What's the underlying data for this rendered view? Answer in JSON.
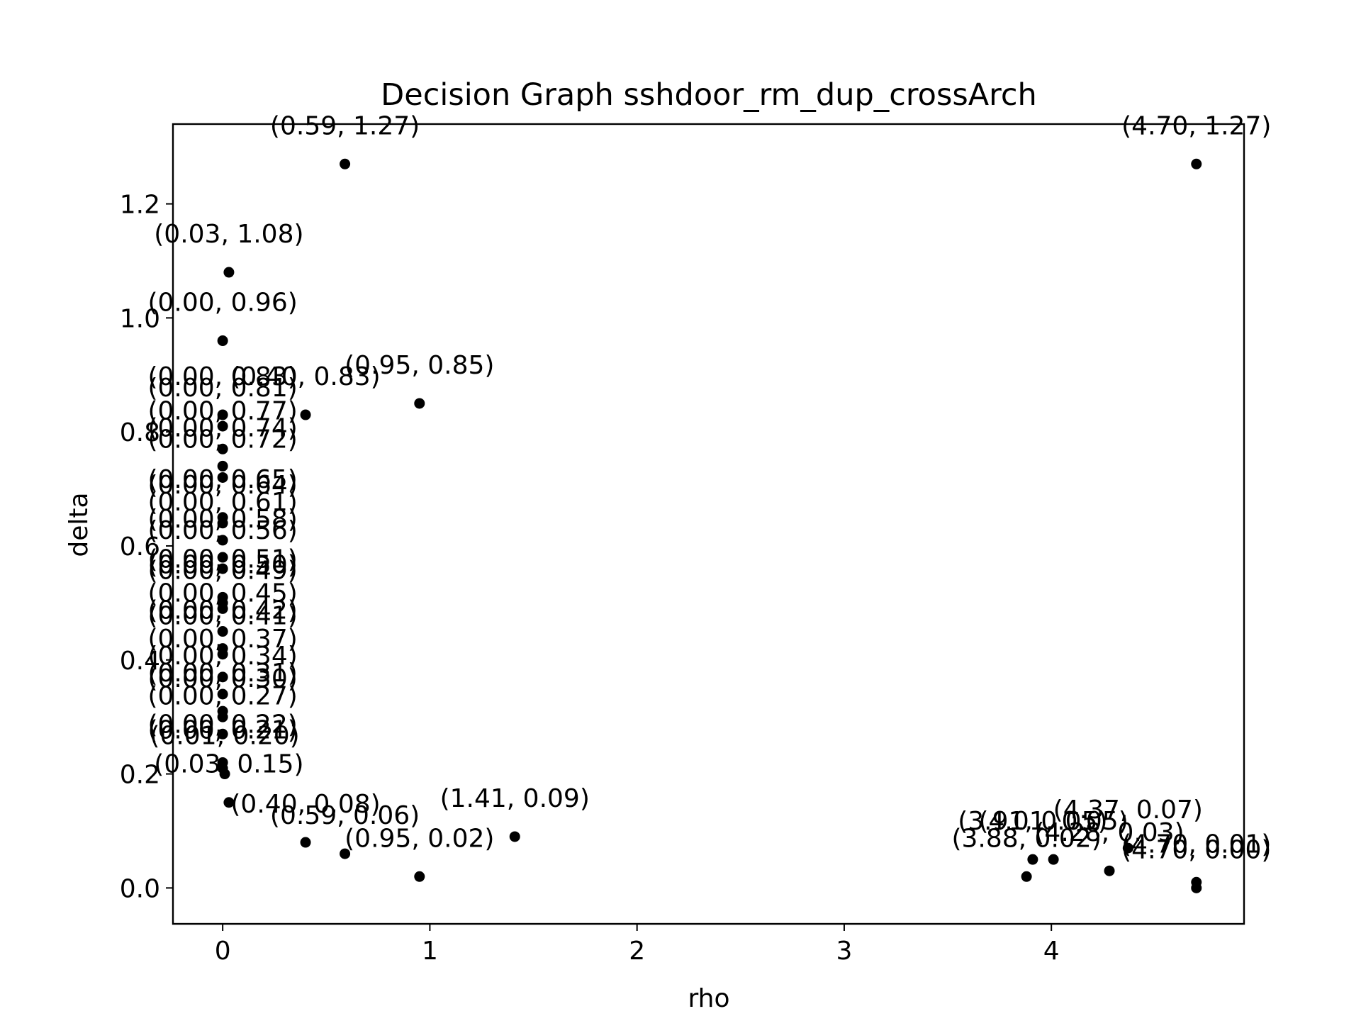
{
  "chart_data": {
    "type": "scatter",
    "title": "Decision Graph sshdoor_rm_dup_crossArch",
    "xlabel": "rho",
    "ylabel": "delta",
    "xlim": [
      -0.24,
      4.93
    ],
    "ylim": [
      -0.063,
      1.34
    ],
    "xticks": [
      0,
      1,
      2,
      3,
      4
    ],
    "yticks": [
      0.0,
      0.2,
      0.4,
      0.6,
      0.8,
      1.0,
      1.2
    ],
    "xtick_labels": [
      "0",
      "1",
      "2",
      "3",
      "4"
    ],
    "ytick_labels": [
      "0.0",
      "0.2",
      "0.4",
      "0.6",
      "0.8",
      "1.0",
      "1.2"
    ],
    "grid": false,
    "marker_color": "#000000",
    "points": [
      {
        "x": 0.59,
        "y": 1.27,
        "label": "(0.59, 1.27)"
      },
      {
        "x": 4.7,
        "y": 1.27,
        "label": "(4.70, 1.27)"
      },
      {
        "x": 0.03,
        "y": 1.08,
        "label": "(0.03, 1.08)"
      },
      {
        "x": 0.0,
        "y": 0.96,
        "label": "(0.00, 0.96)"
      },
      {
        "x": 0.95,
        "y": 0.85,
        "label": "(0.95, 0.85)"
      },
      {
        "x": 0.4,
        "y": 0.83,
        "label": "(0.40, 0.83)"
      },
      {
        "x": 0.0,
        "y": 0.83,
        "label": "(0.00, 0.83)"
      },
      {
        "x": 0.0,
        "y": 0.81,
        "label": "(0.00, 0.81)"
      },
      {
        "x": 0.0,
        "y": 0.77,
        "label": "(0.00, 0.77)"
      },
      {
        "x": 0.0,
        "y": 0.74,
        "label": "(0.00, 0.74)"
      },
      {
        "x": 0.0,
        "y": 0.72,
        "label": "(0.00, 0.72)"
      },
      {
        "x": 0.0,
        "y": 0.65,
        "label": "(0.00, 0.65)"
      },
      {
        "x": 0.0,
        "y": 0.64,
        "label": "(0.00, 0.64)"
      },
      {
        "x": 0.0,
        "y": 0.61,
        "label": "(0.00, 0.61)"
      },
      {
        "x": 0.0,
        "y": 0.58,
        "label": "(0.00, 0.58)"
      },
      {
        "x": 0.0,
        "y": 0.56,
        "label": "(0.00, 0.56)"
      },
      {
        "x": 0.0,
        "y": 0.51,
        "label": "(0.00, 0.51)"
      },
      {
        "x": 0.0,
        "y": 0.5,
        "label": "(0.00, 0.50)"
      },
      {
        "x": 0.0,
        "y": 0.49,
        "label": "(0.00, 0.49)"
      },
      {
        "x": 0.0,
        "y": 0.45,
        "label": "(0.00, 0.45)"
      },
      {
        "x": 0.0,
        "y": 0.42,
        "label": "(0.00, 0.42)"
      },
      {
        "x": 0.0,
        "y": 0.41,
        "label": "(0.00, 0.41)"
      },
      {
        "x": 0.0,
        "y": 0.37,
        "label": "(0.00, 0.37)"
      },
      {
        "x": 0.0,
        "y": 0.34,
        "label": "(0.00, 0.34)"
      },
      {
        "x": 0.0,
        "y": 0.31,
        "label": "(0.00, 0.31)"
      },
      {
        "x": 0.0,
        "y": 0.3,
        "label": "(0.00, 0.30)"
      },
      {
        "x": 0.0,
        "y": 0.27,
        "label": "(0.00, 0.27)"
      },
      {
        "x": 0.0,
        "y": 0.22,
        "label": "(0.00, 0.22)"
      },
      {
        "x": 0.0,
        "y": 0.21,
        "label": "(0.00, 0.21)"
      },
      {
        "x": 0.01,
        "y": 0.2,
        "label": "(0.01, 0.20)"
      },
      {
        "x": 0.03,
        "y": 0.15,
        "label": "(0.03, 0.15)"
      },
      {
        "x": 0.4,
        "y": 0.08,
        "label": "(0.40, 0.08)"
      },
      {
        "x": 0.59,
        "y": 0.06,
        "label": "(0.59, 0.06)"
      },
      {
        "x": 1.41,
        "y": 0.09,
        "label": "(1.41, 0.09)"
      },
      {
        "x": 0.95,
        "y": 0.02,
        "label": "(0.95, 0.02)"
      },
      {
        "x": 3.91,
        "y": 0.05,
        "label": "(3.91, 0.05)"
      },
      {
        "x": 4.01,
        "y": 0.05,
        "label": "(4.01, 0.05)"
      },
      {
        "x": 3.88,
        "y": 0.02,
        "label": "(3.88, 0.02)"
      },
      {
        "x": 4.28,
        "y": 0.03,
        "label": "(4.28, 0.03)"
      },
      {
        "x": 4.37,
        "y": 0.07,
        "label": "(4.37, 0.07)"
      },
      {
        "x": 4.7,
        "y": 0.01,
        "label": "(4.70, 0.01)"
      },
      {
        "x": 4.7,
        "y": 0.0,
        "label": "(4.70, 0.00)"
      }
    ]
  }
}
